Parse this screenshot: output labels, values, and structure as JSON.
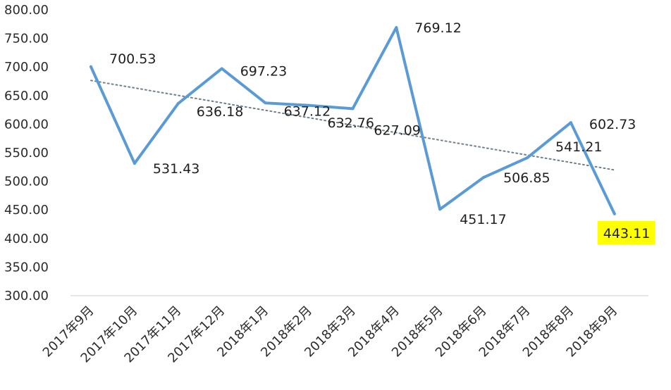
{
  "chart_data": {
    "type": "line",
    "categories": [
      "2017年9月",
      "2017年10月",
      "2017年11月",
      "2017年12月",
      "2018年1月",
      "2018年2月",
      "2018年3月",
      "2018年4月",
      "2018年5月",
      "2018年6月",
      "2018年7月",
      "2018年8月",
      "2018年9月"
    ],
    "values": [
      700.53,
      531.43,
      636.18,
      697.23,
      637.12,
      632.76,
      627.09,
      769.12,
      451.17,
      506.85,
      541.21,
      602.73,
      443.11
    ],
    "data_labels": [
      "700.53",
      "531.43",
      "636.18",
      "697.23",
      "637.12",
      "632.76",
      "627.09",
      "769.12",
      "451.17",
      "506.85",
      "541.21",
      "602.73",
      "443.11"
    ],
    "yticks": [
      "300.00",
      "350.00",
      "400.00",
      "450.00",
      "500.00",
      "550.00",
      "600.00",
      "650.00",
      "700.00",
      "750.00",
      "800.00"
    ],
    "ylim": [
      300,
      800
    ],
    "title": "",
    "xlabel": "",
    "ylabel": "",
    "trendline": {
      "type": "linear",
      "style": "dotted"
    },
    "grid": false,
    "legend": "none",
    "colors": {
      "line": "#5b9bd5",
      "trendline": "#6f7f8a",
      "highlight": "#ffff00",
      "axis": "#cfcfcf",
      "text": "#2b2b2b"
    },
    "highlighted_point": "2018年9月"
  }
}
